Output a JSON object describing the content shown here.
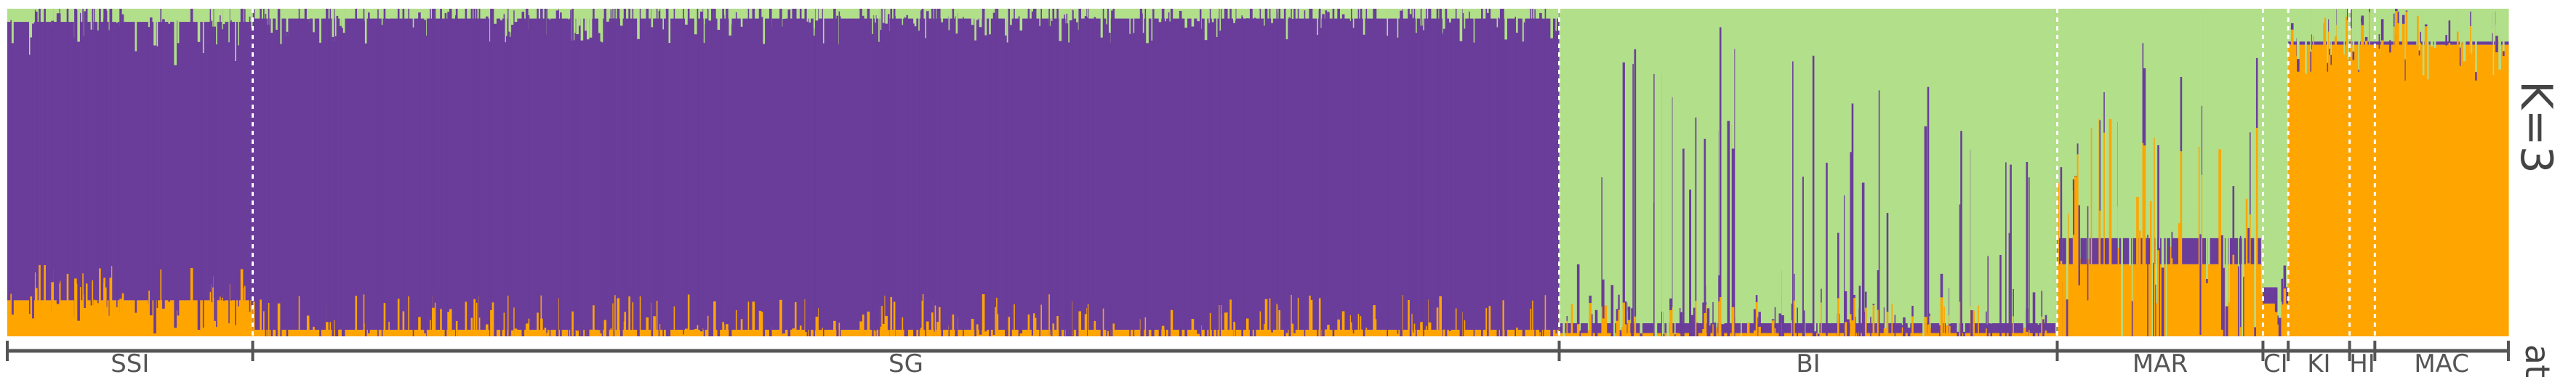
{
  "chart_data": {
    "type": "stacked-bar",
    "title": "",
    "k_label": "K=3",
    "cut_label": "at",
    "ylim": [
      0,
      1
    ],
    "colors": {
      "cluster_1": "#ffa500",
      "cluster_2": "#6a3d9a",
      "cluster_3": "#b2df8a"
    },
    "series": [
      {
        "name": "",
        "color": "#ffa500"
      },
      {
        "name": "",
        "color": "#6a3d9a"
      },
      {
        "name": "",
        "color": "#b2df8a"
      }
    ],
    "populations": [
      {
        "label": "SSI",
        "individuals": 340,
        "mean": [
          0.11,
          0.85,
          0.04
        ]
      },
      {
        "label": "SG",
        "individuals": 1810,
        "mean": [
          0.02,
          0.95,
          0.03
        ]
      },
      {
        "label": "BI",
        "individuals": 690,
        "mean": [
          0.01,
          0.03,
          0.96
        ]
      },
      {
        "label": "MAR",
        "individuals": 285,
        "mean": [
          0.22,
          0.08,
          0.7
        ]
      },
      {
        "label": "CI",
        "individuals": 35,
        "mean": [
          0.1,
          0.05,
          0.85
        ]
      },
      {
        "label": "KI",
        "individuals": 85,
        "mean": [
          0.89,
          0.01,
          0.1
        ]
      },
      {
        "label": "HI",
        "individuals": 35,
        "mean": [
          0.89,
          0.01,
          0.1
        ]
      },
      {
        "label": "MAC",
        "individuals": 185,
        "mean": [
          0.89,
          0.01,
          0.1
        ]
      }
    ]
  }
}
